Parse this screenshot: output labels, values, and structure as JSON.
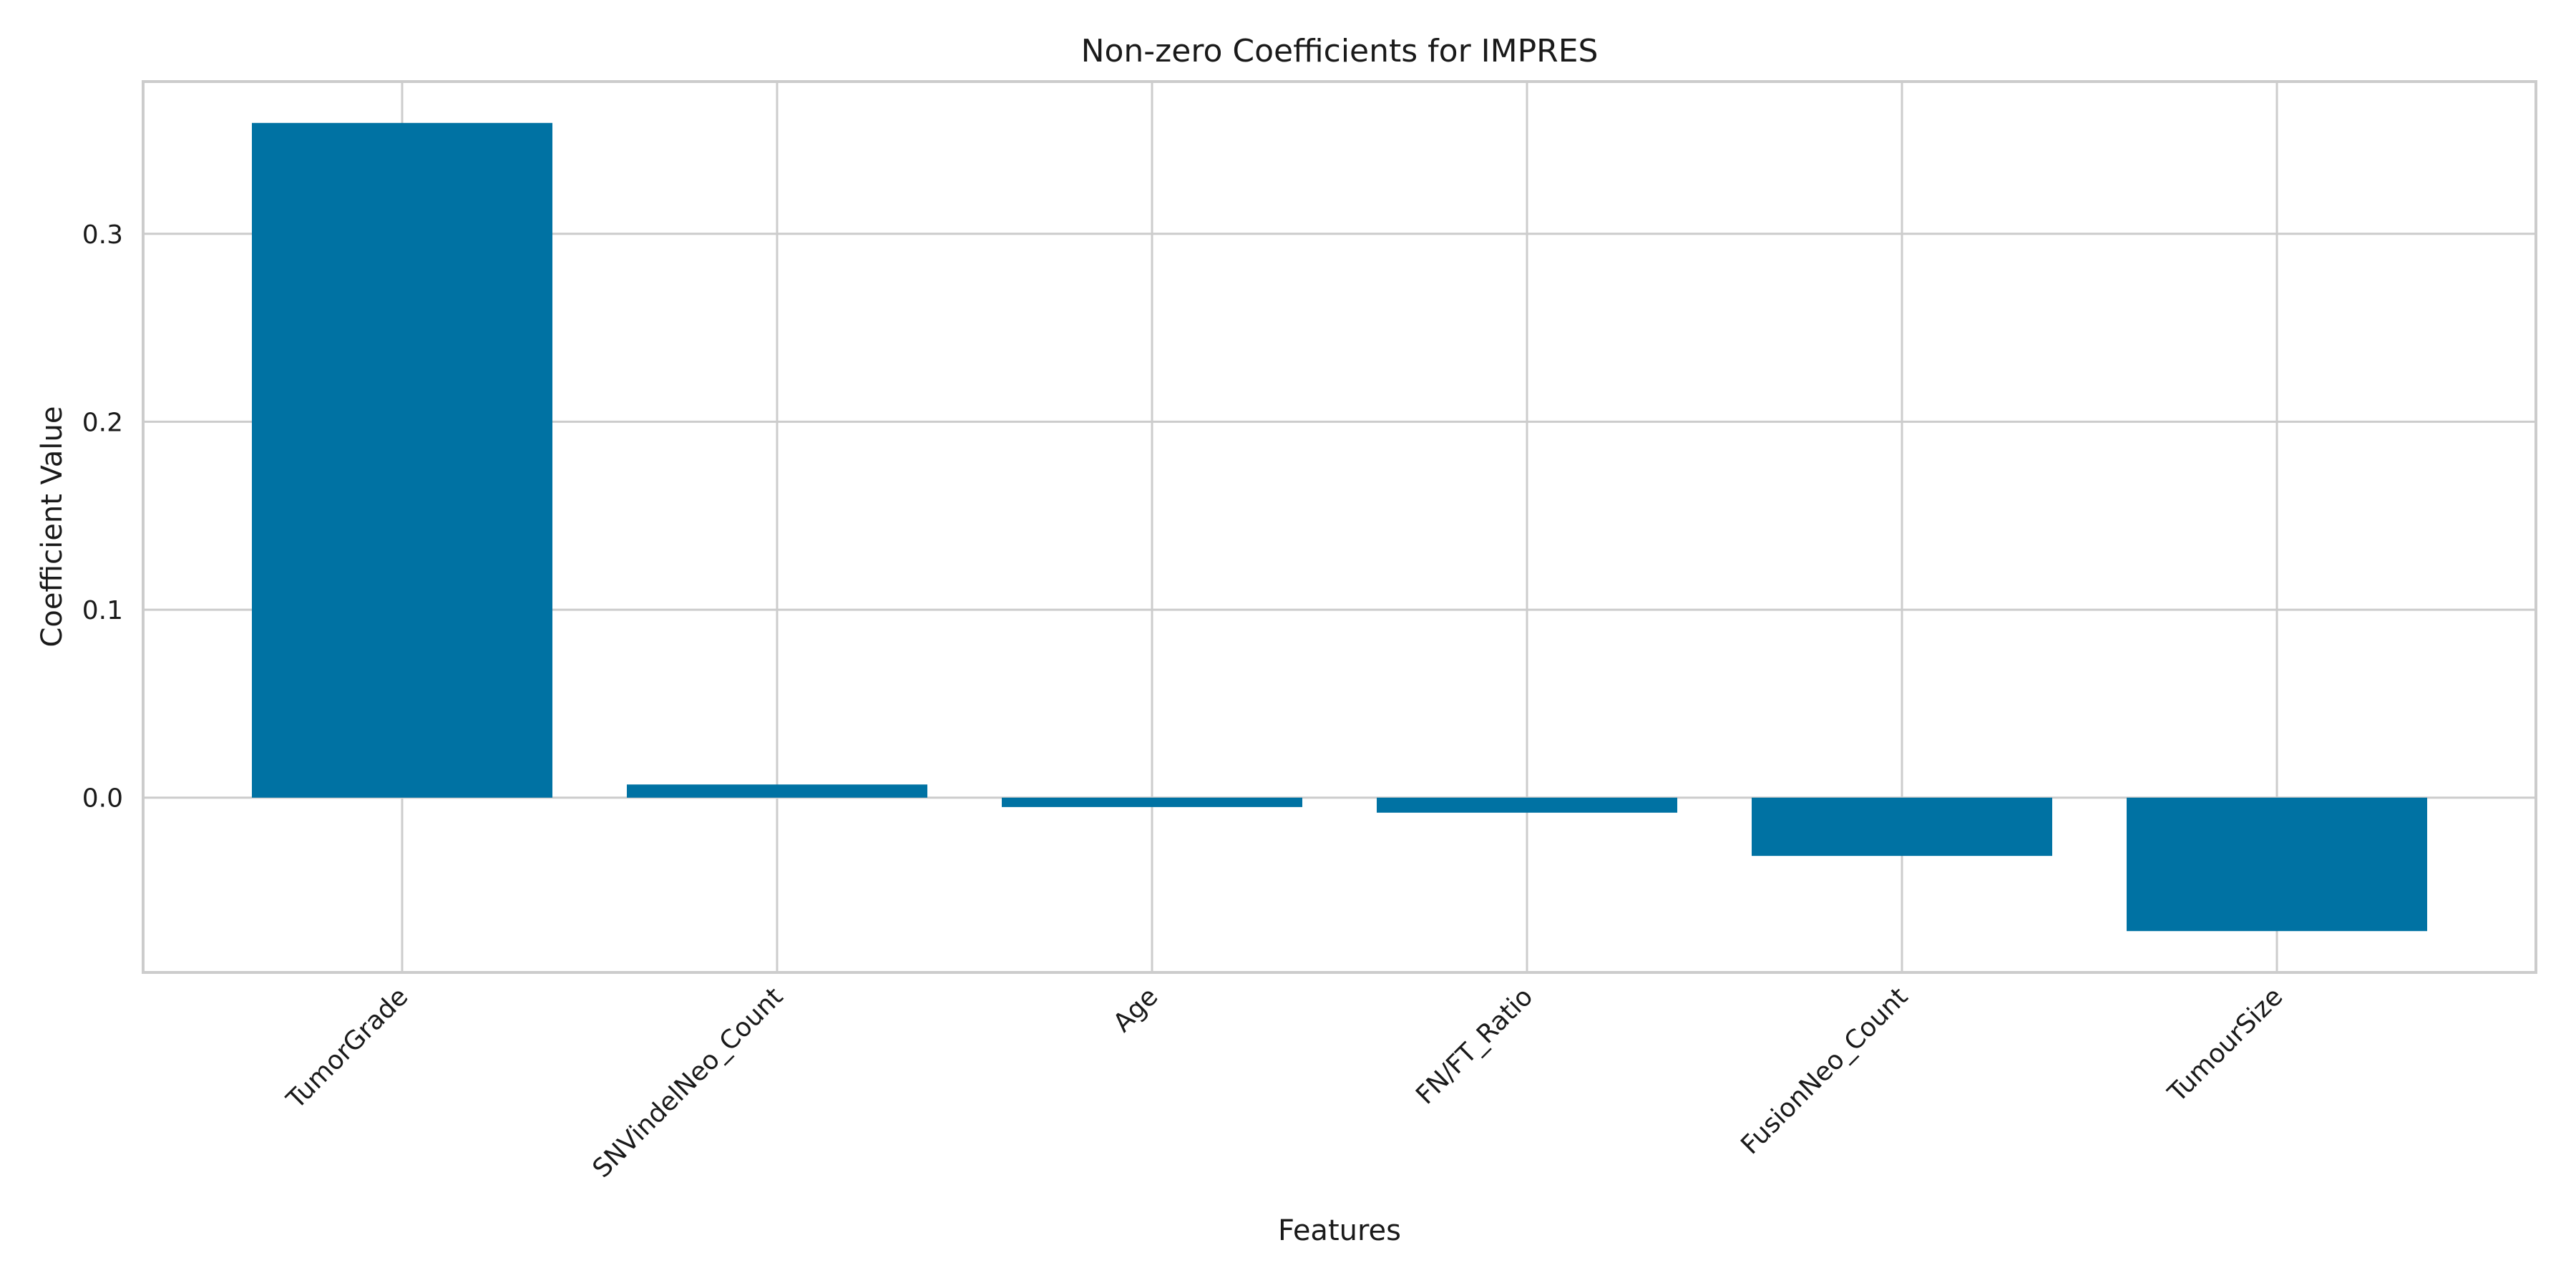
{
  "chart_data": {
    "type": "bar",
    "title": "Non-zero Coefficients for IMPRES",
    "xlabel": "Features",
    "ylabel": "Coefficient Value",
    "categories": [
      "TumorGrade",
      "SNVindelNeo_Count",
      "Age",
      "FN/FT_Ratio",
      "FusionNeo_Count",
      "TumourSize"
    ],
    "values": [
      0.359,
      0.007,
      -0.005,
      -0.008,
      -0.031,
      -0.071
    ],
    "ylim": [
      -0.093,
      0.381
    ],
    "yticks": [
      0.0,
      0.1,
      0.2,
      0.3
    ],
    "ytick_labels": [
      "0.0",
      "0.1",
      "0.2",
      "0.3"
    ],
    "grid": true,
    "bar_color": "#0072a3",
    "grid_color": "#cccccc"
  }
}
